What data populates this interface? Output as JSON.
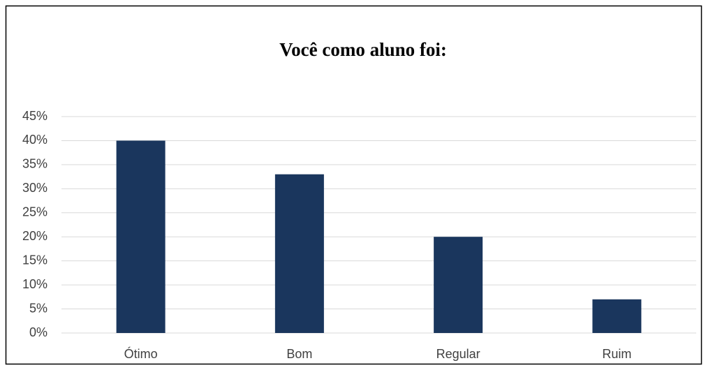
{
  "chart_data": {
    "type": "bar",
    "title": "Você como aluno foi:",
    "categories": [
      "Ótimo",
      "Bom",
      "Regular",
      "Ruim"
    ],
    "values": [
      40,
      33,
      20,
      7
    ],
    "color": "#1a365d",
    "ylim": [
      0,
      45
    ],
    "yticks": [
      {
        "value": 0,
        "label": "0%"
      },
      {
        "value": 5,
        "label": "5%"
      },
      {
        "value": 10,
        "label": "10%"
      },
      {
        "value": 15,
        "label": "15%"
      },
      {
        "value": 20,
        "label": "20%"
      },
      {
        "value": 25,
        "label": "25%"
      },
      {
        "value": 30,
        "label": "30%"
      },
      {
        "value": 35,
        "label": "35%"
      },
      {
        "value": 40,
        "label": "40%"
      },
      {
        "value": 45,
        "label": "45%"
      }
    ],
    "grid": true
  }
}
